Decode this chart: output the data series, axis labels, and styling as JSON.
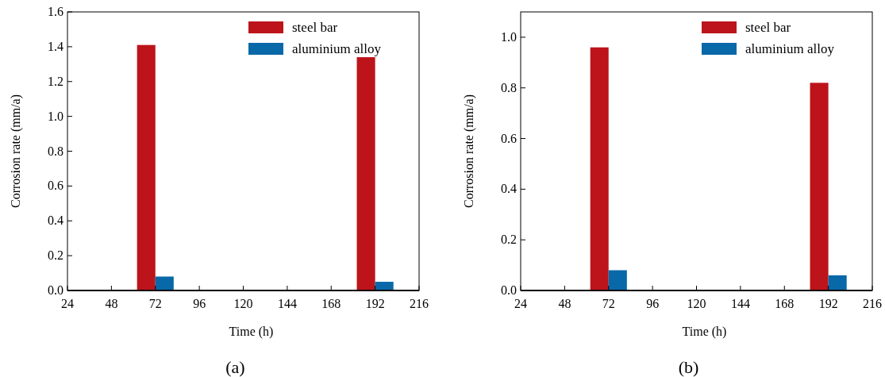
{
  "chart_data": [
    {
      "type": "bar",
      "xlabel": "Time (h)",
      "ylabel": "Corrosion rate (mm/a)",
      "annotations": [
        "(a)"
      ],
      "xlim": [
        24,
        216
      ],
      "xticks": [
        24,
        48,
        72,
        96,
        120,
        144,
        168,
        192,
        216
      ],
      "ylim": [
        0,
        1.6
      ],
      "yticks": [
        {
          "value": 0,
          "label": "0.0"
        },
        {
          "value": 0.2,
          "label": "0.2"
        },
        {
          "value": 0.4,
          "label": "0.4"
        },
        {
          "value": 0.6,
          "label": "0.6"
        },
        {
          "value": 0.8,
          "label": "0.8"
        },
        {
          "value": 1,
          "label": "1.0"
        },
        {
          "value": 1.2,
          "label": "1.2"
        },
        {
          "value": 1.4,
          "label": "1.4"
        },
        {
          "value": 1.6,
          "label": "1.6"
        }
      ],
      "legend": "top right",
      "series": [
        {
          "name": "steel bar",
          "color": "#bc141a",
          "x": [
            67,
            187
          ],
          "values": [
            1.41,
            1.34
          ]
        },
        {
          "name": "aluminium alloy",
          "color": "#0868a8",
          "x": [
            77,
            197
          ],
          "values": [
            0.08,
            0.05
          ]
        }
      ]
    },
    {
      "type": "bar",
      "xlabel": "Time (h)",
      "ylabel": "Corrosion rate (mm/a)",
      "annotations": [
        "(b)"
      ],
      "xlim": [
        24,
        216
      ],
      "xticks": [
        24,
        48,
        72,
        96,
        120,
        144,
        168,
        192,
        216
      ],
      "ylim": [
        0,
        1.1
      ],
      "yticks": [
        {
          "value": 0,
          "label": "0.0"
        },
        {
          "value": 0.2,
          "label": "0.2"
        },
        {
          "value": 0.4,
          "label": "0.4"
        },
        {
          "value": 0.6,
          "label": "0.6"
        },
        {
          "value": 0.8,
          "label": "0.8"
        },
        {
          "value": 1,
          "label": "1.0"
        }
      ],
      "legend": "top right",
      "series": [
        {
          "name": "steel bar",
          "color": "#bc141a",
          "x": [
            67,
            187
          ],
          "values": [
            0.96,
            0.82
          ]
        },
        {
          "name": "aluminium alloy",
          "color": "#0868a8",
          "x": [
            77,
            197
          ],
          "values": [
            0.08,
            0.06
          ]
        }
      ]
    }
  ]
}
